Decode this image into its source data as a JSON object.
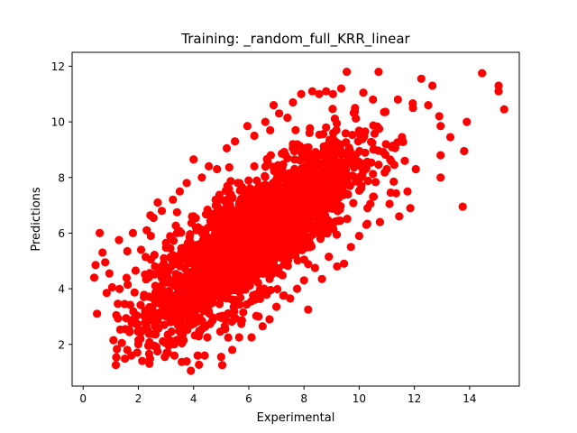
{
  "chart_data": {
    "type": "scatter",
    "title": "Training: _random_full_KRR_linear",
    "xlabel": "Experimental",
    "ylabel": "Predictions",
    "xlim": [
      -0.4,
      15.8
    ],
    "ylim": [
      0.5,
      12.5
    ],
    "xticks": [
      0,
      2,
      4,
      6,
      8,
      10,
      12,
      14
    ],
    "yticks": [
      2,
      4,
      6,
      8,
      10,
      12
    ],
    "grid": false,
    "marker_color": "#ff0000",
    "series": [
      {
        "points": [
          [
            0.45,
            4.85
          ],
          [
            0.4,
            4.4
          ],
          [
            0.5,
            3.1
          ],
          [
            0.6,
            6.0
          ],
          [
            0.7,
            5.3
          ],
          [
            0.8,
            4.95
          ],
          [
            0.85,
            3.85
          ],
          [
            0.95,
            4.55
          ],
          [
            1.05,
            4.05
          ],
          [
            1.1,
            2.15
          ],
          [
            1.2,
            3.05
          ],
          [
            1.3,
            5.75
          ],
          [
            1.4,
            2.05
          ],
          [
            1.5,
            3.45
          ],
          [
            1.6,
            5.35
          ],
          [
            1.65,
            2.5
          ],
          [
            1.75,
            1.6
          ],
          [
            1.8,
            6.0
          ],
          [
            1.9,
            4.65
          ],
          [
            2.0,
            2.15
          ],
          [
            2.1,
            5.4
          ],
          [
            2.2,
            3.7
          ],
          [
            2.3,
            6.1
          ],
          [
            2.4,
            1.3
          ],
          [
            2.45,
            5.9
          ],
          [
            2.55,
            6.55
          ],
          [
            2.6,
            2.65
          ],
          [
            2.7,
            7.1
          ],
          [
            2.85,
            6.8
          ],
          [
            3.0,
            5.65
          ],
          [
            3.1,
            1.95
          ],
          [
            3.25,
            7.2
          ],
          [
            3.4,
            6.75
          ],
          [
            3.5,
            7.5
          ],
          [
            3.6,
            2.35
          ],
          [
            3.75,
            7.8
          ],
          [
            3.9,
            1.05
          ],
          [
            4.0,
            8.65
          ],
          [
            4.1,
            2.9
          ],
          [
            4.15,
            1.6
          ],
          [
            4.3,
            8.0
          ],
          [
            4.4,
            1.6
          ],
          [
            4.5,
            2.25
          ],
          [
            4.55,
            8.4
          ],
          [
            4.7,
            2.9
          ],
          [
            4.85,
            8.3
          ],
          [
            5.0,
            1.55
          ],
          [
            5.15,
            2.55
          ],
          [
            5.2,
            9.05
          ],
          [
            5.4,
            1.8
          ],
          [
            5.5,
            9.3
          ],
          [
            5.65,
            2.25
          ],
          [
            5.8,
            3.15
          ],
          [
            5.95,
            9.85
          ],
          [
            6.1,
            2.25
          ],
          [
            6.2,
            9.5
          ],
          [
            6.35,
            3.0
          ],
          [
            6.5,
            2.65
          ],
          [
            6.6,
            10.0
          ],
          [
            6.75,
            2.9
          ],
          [
            6.9,
            10.6
          ],
          [
            7.0,
            3.35
          ],
          [
            7.1,
            10.3
          ],
          [
            7.25,
            3.75
          ],
          [
            7.4,
            10.15
          ],
          [
            7.5,
            3.65
          ],
          [
            7.6,
            10.7
          ],
          [
            7.75,
            4.0
          ],
          [
            7.9,
            11.0
          ],
          [
            8.0,
            4.3
          ],
          [
            8.15,
            3.25
          ],
          [
            8.3,
            11.1
          ],
          [
            8.4,
            4.75
          ],
          [
            8.55,
            11.0
          ],
          [
            8.65,
            4.35
          ],
          [
            8.8,
            11.1
          ],
          [
            8.9,
            5.15
          ],
          [
            9.05,
            11.0
          ],
          [
            9.2,
            4.8
          ],
          [
            9.35,
            11.2
          ],
          [
            9.45,
            4.9
          ],
          [
            9.55,
            11.8
          ],
          [
            9.7,
            5.5
          ],
          [
            9.85,
            10.5
          ],
          [
            10.0,
            5.9
          ],
          [
            10.15,
            11.05
          ],
          [
            10.3,
            6.9
          ],
          [
            10.4,
            7.05
          ],
          [
            10.5,
            10.8
          ],
          [
            10.7,
            11.8
          ],
          [
            10.75,
            6.4
          ],
          [
            10.9,
            10.35
          ],
          [
            11.0,
            8.3
          ],
          [
            11.1,
            7.05
          ],
          [
            11.25,
            7.85
          ],
          [
            11.4,
            10.8
          ],
          [
            11.45,
            6.6
          ],
          [
            11.55,
            9.45
          ],
          [
            11.65,
            8.6
          ],
          [
            11.75,
            7.5
          ],
          [
            11.85,
            6.9
          ],
          [
            11.95,
            10.5
          ],
          [
            12.05,
            8.3
          ],
          [
            12.25,
            11.55
          ],
          [
            12.5,
            10.6
          ],
          [
            12.65,
            11.3
          ],
          [
            12.9,
            10.2
          ],
          [
            12.95,
            9.85
          ],
          [
            12.95,
            8.8
          ],
          [
            12.95,
            8.0
          ],
          [
            13.3,
            9.45
          ],
          [
            13.75,
            6.95
          ],
          [
            13.8,
            8.95
          ],
          [
            13.9,
            10.0
          ],
          [
            14.45,
            11.75
          ],
          [
            15.05,
            11.3
          ],
          [
            15.05,
            11.1
          ],
          [
            15.25,
            10.45
          ],
          [
            2.9,
            4.2
          ],
          [
            3.2,
            3.4
          ],
          [
            3.5,
            5.1
          ],
          [
            3.8,
            4.6
          ],
          [
            4.2,
            5.6
          ],
          [
            4.6,
            4.1
          ],
          [
            4.9,
            6.2
          ],
          [
            5.3,
            5.2
          ],
          [
            5.6,
            6.7
          ],
          [
            6.0,
            6.0
          ],
          [
            6.3,
            7.1
          ],
          [
            6.7,
            6.6
          ],
          [
            7.0,
            7.6
          ],
          [
            7.4,
            7.0
          ],
          [
            7.8,
            8.1
          ],
          [
            8.2,
            7.6
          ],
          [
            8.6,
            8.5
          ],
          [
            9.0,
            8.1
          ],
          [
            9.4,
            8.9
          ],
          [
            9.8,
            8.6
          ],
          [
            3.0,
            3.0
          ],
          [
            3.6,
            3.8
          ],
          [
            4.4,
            4.8
          ],
          [
            5.0,
            4.4
          ],
          [
            5.8,
            5.4
          ],
          [
            6.4,
            5.0
          ],
          [
            7.2,
            5.8
          ],
          [
            7.8,
            6.2
          ],
          [
            8.4,
            6.8
          ],
          [
            9.2,
            7.2
          ],
          [
            2.6,
            4.8
          ],
          [
            3.4,
            6.0
          ],
          [
            4.0,
            6.6
          ],
          [
            4.8,
            7.2
          ],
          [
            5.6,
            7.8
          ],
          [
            6.2,
            8.4
          ],
          [
            6.8,
            8.8
          ],
          [
            7.6,
            9.2
          ],
          [
            8.2,
            9.6
          ],
          [
            8.8,
            9.8
          ]
        ]
      }
    ]
  }
}
